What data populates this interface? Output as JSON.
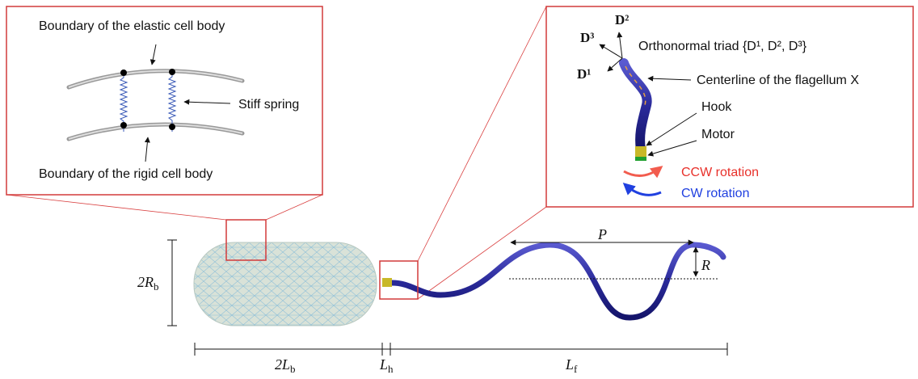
{
  "insets": {
    "left": {
      "upper_label": "Boundary of the elastic cell body",
      "spring_label": "Stiff spring",
      "lower_label": "Boundary of the rigid cell body"
    },
    "right": {
      "d2": "D²",
      "d3": "D³",
      "d1": "D¹",
      "triad_label": "Orthonormal triad {D¹, D², D³}",
      "centerline_label": "Centerline of the flagellum X",
      "hook_label": "Hook",
      "motor_label": "Motor",
      "ccw_label": "CCW rotation",
      "cw_label": "CW rotation"
    }
  },
  "main": {
    "pitch": "P",
    "amplitude": "R",
    "body_radius": {
      "main": "2R",
      "sub": "b"
    },
    "body_length": {
      "main": "2L",
      "sub": "b"
    },
    "hook_length": {
      "main": "L",
      "sub": "h"
    },
    "flagellum_length": {
      "main": "L",
      "sub": "f"
    }
  }
}
